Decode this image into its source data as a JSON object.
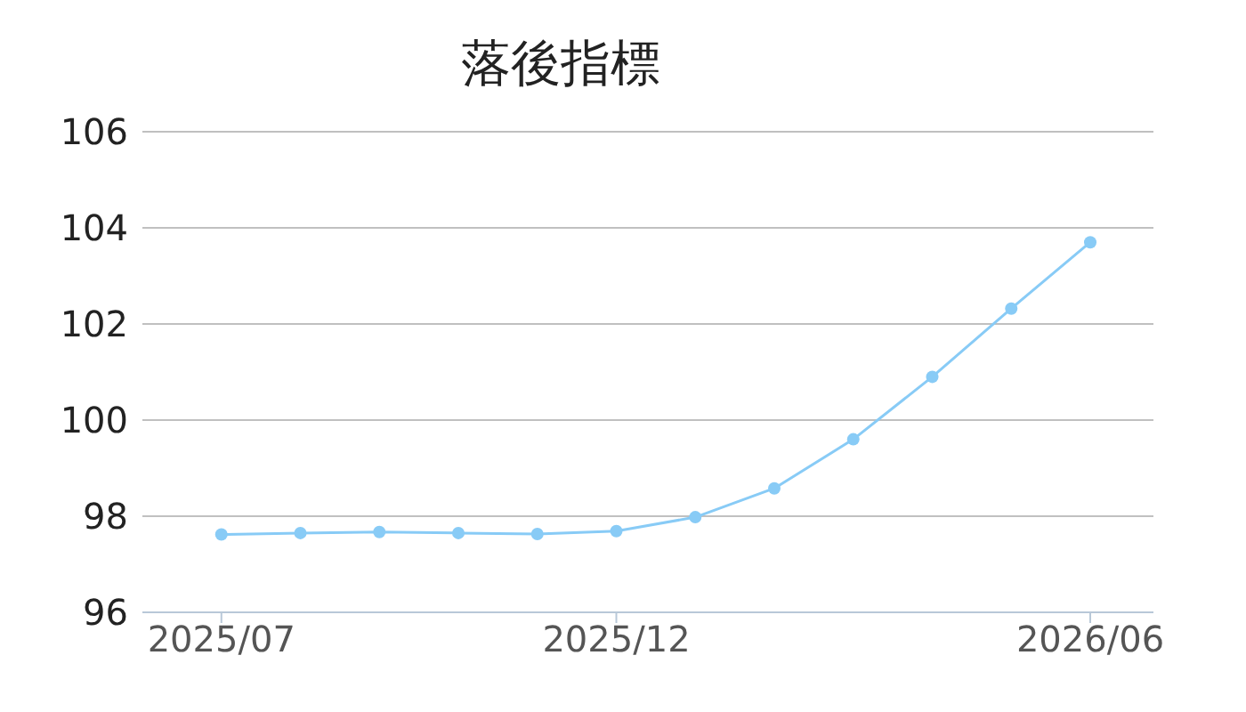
{
  "chart_data": {
    "type": "line",
    "title": "落後指標",
    "categories": [
      "2025/07",
      null,
      null,
      null,
      null,
      "2025/12",
      null,
      null,
      null,
      null,
      null,
      "2026/06"
    ],
    "series": [
      {
        "color": "#88cbf6",
        "values": [
          97.62,
          97.65,
          97.67,
          97.65,
          97.63,
          97.69,
          97.98,
          98.58,
          99.6,
          100.9,
          102.32,
          103.7
        ]
      }
    ],
    "ylim": [
      96,
      106
    ],
    "yticks": [
      96,
      98,
      100,
      102,
      104,
      106
    ],
    "grid": "y",
    "marker": "circle",
    "line_style": "solid"
  }
}
